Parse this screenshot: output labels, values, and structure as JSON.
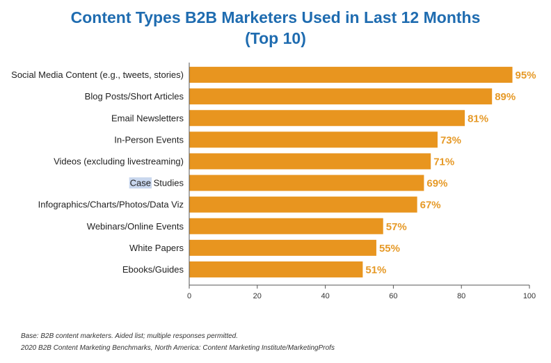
{
  "chart_data": {
    "type": "bar",
    "orientation": "horizontal",
    "title": [
      "Content Types B2B Marketers Used in Last 12 Months",
      "(Top 10)"
    ],
    "categories": [
      "Social Media Content (e.g., tweets, stories)",
      "Blog Posts/Short Articles",
      "Email Newsletters",
      "In-Person Events",
      "Videos (excluding livestreaming)",
      "Case Studies",
      "Infographics/Charts/Photos/Data Viz",
      "Webinars/Online Events",
      "White Papers",
      "Ebooks/Guides"
    ],
    "values": [
      95,
      89,
      81,
      73,
      71,
      69,
      67,
      57,
      55,
      51
    ],
    "value_labels": [
      "95%",
      "89%",
      "81%",
      "73%",
      "71%",
      "69%",
      "67%",
      "57%",
      "55%",
      "51%"
    ],
    "xlim": [
      0,
      100
    ],
    "xticks": [
      0,
      20,
      40,
      60,
      80,
      100
    ],
    "bar_color": "#e8951f",
    "label_color": "#e69a28",
    "title_color": "#1f6cb0",
    "grid": false
  },
  "footnotes": {
    "base": "Base: B2B content marketers. Aided list; multiple responses permitted.",
    "source": "2020 B2B Content Marketing Benchmarks, North America: Content Marketing Institute/MarketingProfs"
  }
}
